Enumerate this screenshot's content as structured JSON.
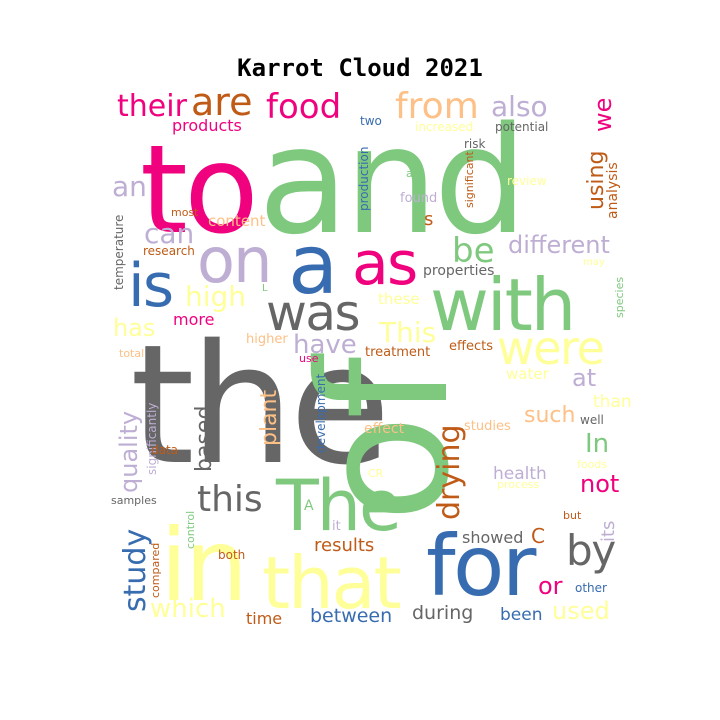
{
  "chart_data": {
    "type": "wordcloud",
    "title": "Karrot Cloud 2021",
    "palette": {
      "green": "#7fc97f",
      "lavender": "#beaed4",
      "peach": "#fdc086",
      "yellow": "#ffff99",
      "blue": "#386cb0",
      "magenta": "#f0027f",
      "brown": "#bf5b17",
      "gray": "#666666"
    },
    "words": [
      {
        "text": "the",
        "color": "gray"
      },
      {
        "text": "of",
        "color": "green"
      },
      {
        "text": "and",
        "color": "green"
      },
      {
        "text": "to",
        "color": "magenta"
      },
      {
        "text": "in",
        "color": "yellow"
      },
      {
        "text": "that",
        "color": "yellow"
      },
      {
        "text": "for",
        "color": "blue"
      },
      {
        "text": "with",
        "color": "green"
      },
      {
        "text": "The",
        "color": "green"
      },
      {
        "text": "a",
        "color": "blue"
      },
      {
        "text": "as",
        "color": "magenta"
      },
      {
        "text": "on",
        "color": "lavender"
      },
      {
        "text": "is",
        "color": "blue"
      },
      {
        "text": "was",
        "color": "gray"
      },
      {
        "text": "were",
        "color": "yellow"
      },
      {
        "text": "by",
        "color": "gray"
      },
      {
        "text": "from",
        "color": "peach"
      },
      {
        "text": "food",
        "color": "magenta"
      },
      {
        "text": "are",
        "color": "brown"
      },
      {
        "text": "their",
        "color": "magenta"
      },
      {
        "text": "also",
        "color": "lavender"
      },
      {
        "text": "we",
        "color": "magenta"
      },
      {
        "text": "this",
        "color": "gray"
      },
      {
        "text": "drying",
        "color": "brown"
      },
      {
        "text": "study",
        "color": "blue"
      },
      {
        "text": "quality",
        "color": "lavender"
      },
      {
        "text": "plant",
        "color": "peach"
      },
      {
        "text": "based",
        "color": "gray"
      },
      {
        "text": "which",
        "color": "yellow"
      },
      {
        "text": "be",
        "color": "green"
      },
      {
        "text": "different",
        "color": "lavender"
      },
      {
        "text": "using",
        "color": "brown"
      },
      {
        "text": "an",
        "color": "lavender"
      },
      {
        "text": "can",
        "color": "lavender"
      },
      {
        "text": "high",
        "color": "yellow"
      },
      {
        "text": "has",
        "color": "yellow"
      },
      {
        "text": "have",
        "color": "lavender"
      },
      {
        "text": "This",
        "color": "yellow"
      },
      {
        "text": "at",
        "color": "lavender"
      },
      {
        "text": "In",
        "color": "green"
      },
      {
        "text": "not",
        "color": "magenta"
      },
      {
        "text": "such",
        "color": "peach"
      },
      {
        "text": "or",
        "color": "magenta"
      },
      {
        "text": "used",
        "color": "yellow"
      },
      {
        "text": "its",
        "color": "lavender"
      },
      {
        "text": "results",
        "color": "brown"
      },
      {
        "text": "between",
        "color": "blue"
      },
      {
        "text": "during",
        "color": "gray"
      },
      {
        "text": "been",
        "color": "blue"
      },
      {
        "text": "showed",
        "color": "gray"
      },
      {
        "text": "time",
        "color": "brown"
      },
      {
        "text": "products",
        "color": "magenta"
      },
      {
        "text": "content",
        "color": "peach"
      },
      {
        "text": "more",
        "color": "magenta"
      },
      {
        "text": "these",
        "color": "yellow"
      },
      {
        "text": "than",
        "color": "yellow"
      },
      {
        "text": "water",
        "color": "yellow"
      },
      {
        "text": "health",
        "color": "lavender"
      },
      {
        "text": "analysis",
        "color": "brown"
      },
      {
        "text": "production",
        "color": "blue"
      },
      {
        "text": "s",
        "color": "brown"
      },
      {
        "text": "properties",
        "color": "gray"
      },
      {
        "text": "higher",
        "color": "peach"
      },
      {
        "text": "effects",
        "color": "brown"
      },
      {
        "text": "treatment",
        "color": "brown"
      },
      {
        "text": "development",
        "color": "blue"
      },
      {
        "text": "effect",
        "color": "peach"
      },
      {
        "text": "studies",
        "color": "peach"
      },
      {
        "text": "C",
        "color": "brown"
      },
      {
        "text": "potential",
        "color": "gray"
      },
      {
        "text": "risk",
        "color": "gray"
      },
      {
        "text": "two",
        "color": "blue"
      },
      {
        "text": "increased",
        "color": "yellow"
      },
      {
        "text": "significant",
        "color": "brown"
      },
      {
        "text": "review",
        "color": "yellow"
      },
      {
        "text": "found",
        "color": "lavender"
      },
      {
        "text": "all",
        "color": "green"
      },
      {
        "text": "most",
        "color": "brown"
      },
      {
        "text": "research",
        "color": "brown"
      },
      {
        "text": "temperature",
        "color": "gray"
      },
      {
        "text": "species",
        "color": "green"
      },
      {
        "text": "may",
        "color": "yellow"
      },
      {
        "text": "total",
        "color": "peach"
      },
      {
        "text": "use",
        "color": "magenta"
      },
      {
        "text": "well",
        "color": "gray"
      },
      {
        "text": "foods",
        "color": "yellow"
      },
      {
        "text": "process",
        "color": "yellow"
      },
      {
        "text": "significantly",
        "color": "lavender"
      },
      {
        "text": "data",
        "color": "brown"
      },
      {
        "text": "samples",
        "color": "gray"
      },
      {
        "text": "compared",
        "color": "brown"
      },
      {
        "text": "control",
        "color": "green"
      },
      {
        "text": "both",
        "color": "brown"
      },
      {
        "text": "it",
        "color": "lavender"
      },
      {
        "text": "A",
        "color": "green"
      },
      {
        "text": "but",
        "color": "brown"
      },
      {
        "text": "other",
        "color": "blue"
      },
      {
        "text": "L",
        "color": "green"
      },
      {
        "text": "CR",
        "color": "yellow"
      }
    ]
  }
}
